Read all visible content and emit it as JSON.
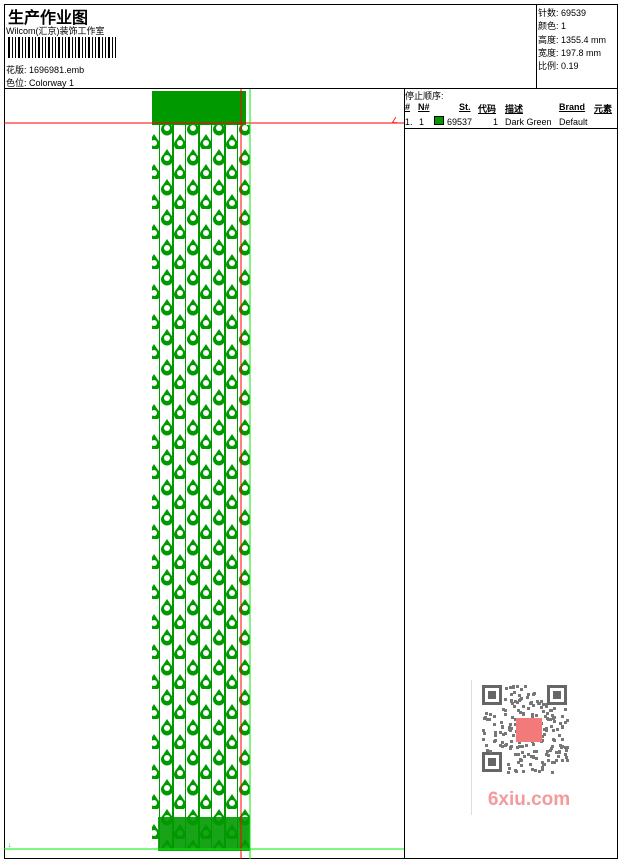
{
  "header": {
    "title": "生产作业图",
    "company": "Wilcom(汇京)装饰工作室",
    "file_label": "花版:",
    "file": "1696981.emb",
    "colorway_label": "色位:",
    "colorway": "Colorway 1"
  },
  "info": [
    {
      "label": "针数:",
      "value": "69539"
    },
    {
      "label": "颜色:",
      "value": "1"
    },
    {
      "label": "高度:",
      "value": "1355.4 mm"
    },
    {
      "label": "宽度:",
      "value": "197.8 mm"
    },
    {
      "label": "比例:",
      "value": "0.19"
    }
  ],
  "stop_sequence": {
    "title": "停止顺序:",
    "columns": [
      "#",
      "N#",
      "St.",
      "代码",
      "描述",
      "Brand",
      "元素"
    ],
    "rows": [
      {
        "index": "1.",
        "n": "1",
        "color": "#009900",
        "stitches": "69537",
        "code": "1",
        "description": "Dark Green",
        "brand": "Default",
        "element": ""
      }
    ]
  },
  "watermark": {
    "text": "6xiu.com",
    "seal": "以图找图"
  },
  "colors": {
    "thread": "#009900",
    "guide_red": "#ff0000",
    "guide_green": "#00ee00"
  }
}
